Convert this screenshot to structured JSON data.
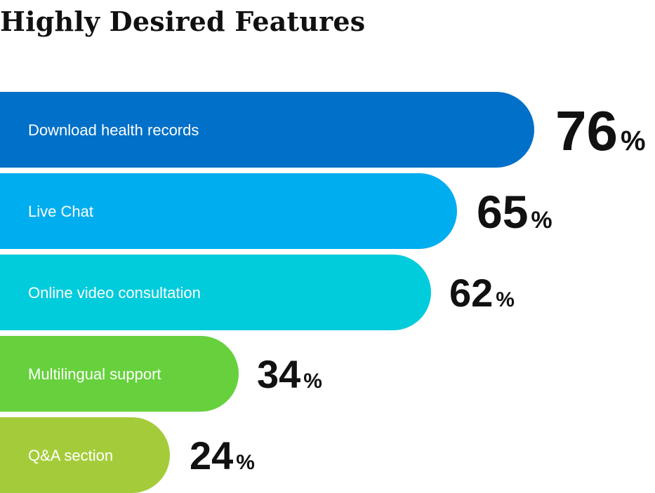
{
  "chart_data": {
    "type": "bar",
    "orientation": "horizontal",
    "title": "Highly Desired Features",
    "categories": [
      "Download health records",
      "Live Chat",
      "Online video consultation",
      "Multilingual support",
      "Q&A section"
    ],
    "values": [
      76,
      65,
      62,
      34,
      24
    ],
    "value_labels": [
      "76",
      "65",
      "62",
      "34",
      "24"
    ],
    "unit": "%",
    "colors": [
      "#0070C8",
      "#00AEEF",
      "#00CCDB",
      "#66D13C",
      "#A4CC3A"
    ],
    "grid": false,
    "legend": "none"
  }
}
